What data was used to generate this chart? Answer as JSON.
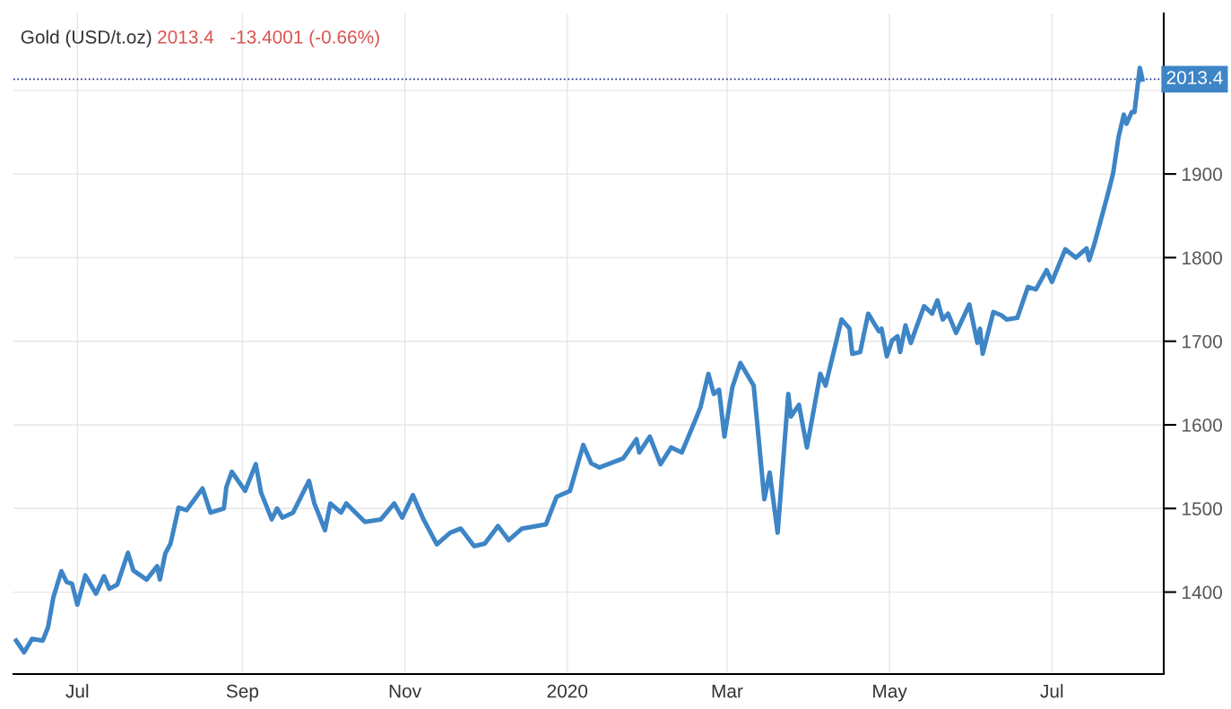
{
  "chart_data": {
    "type": "line",
    "title": "Gold (USD/t.oz)",
    "subtitle": "2013.4   -13.4001 (-0.66%)",
    "x": [
      "2019-06-08",
      "2019-06-11",
      "2019-06-14",
      "2019-06-18",
      "2019-06-20",
      "2019-06-22",
      "2019-06-25",
      "2019-06-27",
      "2019-06-29",
      "2019-07-01",
      "2019-07-04",
      "2019-07-08",
      "2019-07-11",
      "2019-07-13",
      "2019-07-16",
      "2019-07-20",
      "2019-07-22",
      "2019-07-27",
      "2019-07-31",
      "2019-08-01",
      "2019-08-03",
      "2019-08-05",
      "2019-08-08",
      "2019-08-11",
      "2019-08-17",
      "2019-08-20",
      "2019-08-25",
      "2019-08-26",
      "2019-08-28",
      "2019-09-02",
      "2019-09-06",
      "2019-09-08",
      "2019-09-12",
      "2019-09-14",
      "2019-09-16",
      "2019-09-20",
      "2019-09-26",
      "2019-09-28",
      "2019-10-02",
      "2019-10-04",
      "2019-10-08",
      "2019-10-10",
      "2019-10-17",
      "2019-10-23",
      "2019-10-28",
      "2019-10-31",
      "2019-11-04",
      "2019-11-08",
      "2019-11-13",
      "2019-11-18",
      "2019-11-22",
      "2019-11-27",
      "2019-12-01",
      "2019-12-06",
      "2019-12-10",
      "2019-12-15",
      "2019-12-24",
      "2019-12-28",
      "2020-01-02",
      "2020-01-07",
      "2020-01-10",
      "2020-01-13",
      "2020-01-22",
      "2020-01-27",
      "2020-01-28",
      "2020-02-01",
      "2020-02-05",
      "2020-02-09",
      "2020-02-13",
      "2020-02-18",
      "2020-02-20",
      "2020-02-23",
      "2020-02-25",
      "2020-02-27",
      "2020-02-29",
      "2020-03-03",
      "2020-03-06",
      "2020-03-11",
      "2020-03-15",
      "2020-03-17",
      "2020-03-20",
      "2020-03-24",
      "2020-03-25",
      "2020-03-28",
      "2020-03-31",
      "2020-04-05",
      "2020-04-07",
      "2020-04-13",
      "2020-04-16",
      "2020-04-17",
      "2020-04-20",
      "2020-04-23",
      "2020-04-27",
      "2020-04-28",
      "2020-04-30",
      "2020-05-02",
      "2020-05-04",
      "2020-05-05",
      "2020-05-07",
      "2020-05-09",
      "2020-05-14",
      "2020-05-17",
      "2020-05-19",
      "2020-05-21",
      "2020-05-23",
      "2020-05-26",
      "2020-05-31",
      "2020-06-03",
      "2020-06-04",
      "2020-06-05",
      "2020-06-09",
      "2020-06-12",
      "2020-06-14",
      "2020-06-18",
      "2020-06-22",
      "2020-06-25",
      "2020-06-29",
      "2020-07-01",
      "2020-07-06",
      "2020-07-10",
      "2020-07-14",
      "2020-07-15",
      "2020-07-17",
      "2020-07-22",
      "2020-07-24",
      "2020-07-26",
      "2020-07-28",
      "2020-07-29",
      "2020-07-31",
      "2020-08-01",
      "2020-08-03",
      "2020-08-04"
    ],
    "series": [
      {
        "color": "#3d85c6",
        "values": [
          1342,
          1328,
          1344,
          1342,
          1358,
          1394,
          1425,
          1412,
          1410,
          1385,
          1420,
          1398,
          1419,
          1404,
          1409,
          1447,
          1426,
          1415,
          1431,
          1415,
          1446,
          1458,
          1501,
          1498,
          1524,
          1495,
          1500,
          1526,
          1544,
          1521,
          1553,
          1519,
          1487,
          1500,
          1489,
          1495,
          1533,
          1506,
          1474,
          1506,
          1495,
          1506,
          1484,
          1487,
          1506,
          1489,
          1516,
          1487,
          1457,
          1471,
          1476,
          1455,
          1458,
          1479,
          1462,
          1476,
          1481,
          1514,
          1521,
          1576,
          1554,
          1549,
          1560,
          1583,
          1567,
          1586,
          1553,
          1573,
          1567,
          1605,
          1621,
          1661,
          1637,
          1642,
          1586,
          1645,
          1674,
          1647,
          1511,
          1543,
          1471,
          1637,
          1610,
          1624,
          1573,
          1661,
          1647,
          1726,
          1715,
          1685,
          1687,
          1733,
          1712,
          1715,
          1682,
          1701,
          1706,
          1687,
          1719,
          1698,
          1742,
          1733,
          1749,
          1726,
          1733,
          1710,
          1744,
          1698,
          1715,
          1685,
          1735,
          1731,
          1726,
          1728,
          1765,
          1762,
          1785,
          1771,
          1810,
          1800,
          1811,
          1797,
          1817,
          1876,
          1901,
          1944,
          1971,
          1960,
          1974,
          1974,
          2027,
          2013
        ]
      }
    ],
    "xlim": [
      "2019-06-07",
      "2020-08-12"
    ],
    "xticks": [
      {
        "value": "2019-07-01",
        "label": "Jul"
      },
      {
        "value": "2019-09-01",
        "label": "Sep"
      },
      {
        "value": "2019-11-01",
        "label": "Nov"
      },
      {
        "value": "2020-01-01",
        "label": "2020"
      },
      {
        "value": "2020-03-01",
        "label": "Mar"
      },
      {
        "value": "2020-05-01",
        "label": "May"
      },
      {
        "value": "2020-07-01",
        "label": "Jul"
      }
    ],
    "ylim": [
      1302,
      2092
    ],
    "yticks": [
      1400,
      1500,
      1600,
      1700,
      1800,
      1900,
      {
        "value": 2000,
        "label": null
      }
    ],
    "ref_lines": [
      {
        "axis": "y",
        "value": 2013.4,
        "label": "2013.4",
        "color": "#1f2a8c",
        "line_style": "dotted"
      }
    ],
    "grid": true,
    "legend": false,
    "marker": "none",
    "line_style": "solid"
  }
}
